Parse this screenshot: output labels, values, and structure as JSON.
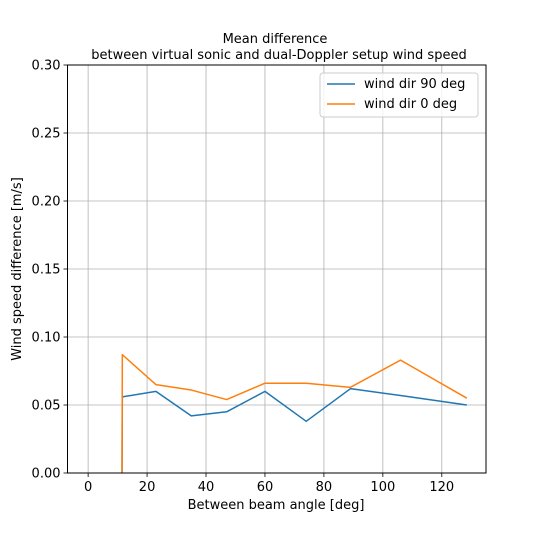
{
  "chart_data": {
    "type": "line",
    "title_lines": [
      "Mean difference",
      "between virtual sonic and dual-Doppler setup wind speed"
    ],
    "xlabel": "Between beam angle [deg]",
    "ylabel": "Wind speed difference [m/s]",
    "xlim": [
      -7,
      135
    ],
    "ylim": [
      0,
      0.3
    ],
    "xticks": [
      0,
      20,
      40,
      60,
      80,
      100,
      120
    ],
    "yticks": [
      0.0,
      0.05,
      0.1,
      0.15,
      0.2,
      0.25,
      0.3
    ],
    "xtick_labels": [
      "0",
      "20",
      "40",
      "60",
      "80",
      "100",
      "120"
    ],
    "ytick_labels": [
      "0.00",
      "0.05",
      "0.10",
      "0.15",
      "0.20",
      "0.25",
      "0.30"
    ],
    "grid": true,
    "legend_position": "top-right",
    "series": [
      {
        "name": "wind dir 90 deg",
        "color": "#1f77b4",
        "x": [
          11.5,
          11.5,
          11.6,
          23,
          35,
          47,
          60,
          74,
          89,
          106,
          128.5
        ],
        "y": [
          0.0,
          0.0,
          0.056,
          0.06,
          0.042,
          0.045,
          0.06,
          0.038,
          0.062,
          0.057,
          0.05
        ]
      },
      {
        "name": "wind dir 0 deg",
        "color": "#ff7f0e",
        "x": [
          11.5,
          11.5,
          11.6,
          23,
          35,
          47,
          60,
          74,
          89,
          106,
          128.5
        ],
        "y": [
          0.0,
          0.0,
          0.087,
          0.065,
          0.061,
          0.054,
          0.066,
          0.066,
          0.063,
          0.083,
          0.055
        ]
      }
    ]
  }
}
